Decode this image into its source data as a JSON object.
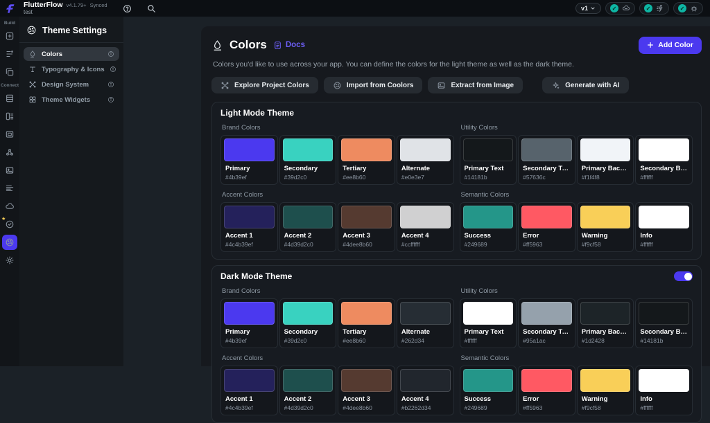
{
  "topbar": {
    "brand": "FlutterFlow",
    "version": "v4.1.79+",
    "sync_status": "Synced",
    "project_name": "test",
    "version_selector": "v1",
    "check_color": "#0eb5a3",
    "status_pills": [
      {
        "icon": "cloud-chat-icon"
      },
      {
        "icon": "actions-bolt-icon"
      },
      {
        "icon": "bug-icon"
      }
    ]
  },
  "rail": {
    "groups": [
      {
        "label": "Build",
        "items": [
          {
            "icon": "add-widget",
            "active": false
          },
          {
            "icon": "widget-tree",
            "active": false
          },
          {
            "icon": "pages",
            "active": false
          }
        ]
      },
      {
        "label": "Connect",
        "items": [
          {
            "icon": "database",
            "active": false
          },
          {
            "icon": "data-schema",
            "active": false
          },
          {
            "icon": "app-state",
            "active": false
          },
          {
            "icon": "integrations",
            "active": false
          },
          {
            "icon": "media",
            "active": false
          },
          {
            "icon": "custom-code",
            "active": false
          },
          {
            "icon": "cloud",
            "active": false
          },
          {
            "icon": "checklist",
            "active": false,
            "badge": "★"
          },
          {
            "icon": "palette",
            "active": true
          },
          {
            "icon": "gear",
            "active": false
          }
        ]
      }
    ]
  },
  "sidebar": {
    "title": "Theme Settings",
    "items": [
      {
        "icon": "drop",
        "label": "Colors",
        "active": true
      },
      {
        "icon": "typography",
        "label": "Typography & Icons",
        "active": false
      },
      {
        "icon": "design-system",
        "label": "Design System",
        "active": false
      },
      {
        "icon": "widgets",
        "label": "Theme Widgets",
        "active": false
      }
    ]
  },
  "main": {
    "header": {
      "title": "Colors",
      "docs_label": "Docs",
      "add_button_label": "Add Color",
      "description": "Colors you'd like to use across your app. You can define the colors for the light theme as well as the dark theme."
    },
    "actions": [
      {
        "icon": "design-system",
        "label": "Explore Project Colors",
        "spaced": false
      },
      {
        "icon": "coolors",
        "label": "Import from Coolors",
        "spaced": false
      },
      {
        "icon": "image",
        "label": "Extract from Image",
        "spaced": false
      },
      {
        "icon": "sparkle",
        "label": "Generate with AI",
        "spaced": true
      }
    ],
    "sections": [
      {
        "title": "Light Mode Theme",
        "toggle": null,
        "rows": [
          {
            "groups": [
              {
                "label": "Brand Colors",
                "swatches": [
                  {
                    "label": "Primary",
                    "hex": "#4b39ef",
                    "css": "#4b39ef"
                  },
                  {
                    "label": "Secondary",
                    "hex": "#39d2c0",
                    "css": "#39d2c0"
                  },
                  {
                    "label": "Tertiary",
                    "hex": "#ee8b60",
                    "css": "#ee8b60"
                  },
                  {
                    "label": "Alternate",
                    "hex": "#e0e3e7",
                    "css": "#e0e3e7"
                  }
                ]
              },
              {
                "label": "Utility Colors",
                "swatches": [
                  {
                    "label": "Primary Text",
                    "hex": "#14181b",
                    "css": "#14181b"
                  },
                  {
                    "label": "Secondary Text",
                    "hex": "#57636c",
                    "css": "#57636c"
                  },
                  {
                    "label": "Primary Background",
                    "hex": "#f1f4f8",
                    "css": "#f1f4f8"
                  },
                  {
                    "label": "Secondary Background",
                    "hex": "#ffffff",
                    "css": "#ffffff"
                  }
                ]
              }
            ]
          },
          {
            "groups": [
              {
                "label": "Accent Colors",
                "swatches": [
                  {
                    "label": "Accent 1",
                    "hex": "#4c4b39ef",
                    "css": "rgba(75,57,239,0.30)"
                  },
                  {
                    "label": "Accent 2",
                    "hex": "#4d39d2c0",
                    "css": "rgba(57,210,192,0.30)"
                  },
                  {
                    "label": "Accent 3",
                    "hex": "#4dee8b60",
                    "css": "rgba(238,139,96,0.30)"
                  },
                  {
                    "label": "Accent 4",
                    "hex": "#ccffffff",
                    "css": "rgba(255,255,255,0.80)"
                  }
                ]
              },
              {
                "label": "Semantic Colors",
                "swatches": [
                  {
                    "label": "Success",
                    "hex": "#249689",
                    "css": "#249689"
                  },
                  {
                    "label": "Error",
                    "hex": "#ff5963",
                    "css": "#ff5963"
                  },
                  {
                    "label": "Warning",
                    "hex": "#f9cf58",
                    "css": "#f9cf58"
                  },
                  {
                    "label": "Info",
                    "hex": "#ffffff",
                    "css": "#ffffff"
                  }
                ]
              }
            ]
          }
        ]
      },
      {
        "title": "Dark Mode Theme",
        "toggle": "on",
        "rows": [
          {
            "groups": [
              {
                "label": "Brand Colors",
                "swatches": [
                  {
                    "label": "Primary",
                    "hex": "#4b39ef",
                    "css": "#4b39ef"
                  },
                  {
                    "label": "Secondary",
                    "hex": "#39d2c0",
                    "css": "#39d2c0"
                  },
                  {
                    "label": "Tertiary",
                    "hex": "#ee8b60",
                    "css": "#ee8b60"
                  },
                  {
                    "label": "Alternate",
                    "hex": "#262d34",
                    "css": "#262d34"
                  }
                ]
              },
              {
                "label": "Utility Colors",
                "swatches": [
                  {
                    "label": "Primary Text",
                    "hex": "#ffffff",
                    "css": "#ffffff"
                  },
                  {
                    "label": "Secondary Text",
                    "hex": "#95a1ac",
                    "css": "#95a1ac"
                  },
                  {
                    "label": "Primary Background",
                    "hex": "#1d2428",
                    "css": "#1d2428"
                  },
                  {
                    "label": "Secondary Background",
                    "hex": "#14181b",
                    "css": "#14181b"
                  }
                ]
              }
            ]
          },
          {
            "groups": [
              {
                "label": "Accent Colors",
                "swatches": [
                  {
                    "label": "Accent 1",
                    "hex": "#4c4b39ef",
                    "css": "rgba(75,57,239,0.30)"
                  },
                  {
                    "label": "Accent 2",
                    "hex": "#4d39d2c0",
                    "css": "rgba(57,210,192,0.30)"
                  },
                  {
                    "label": "Accent 3",
                    "hex": "#4dee8b60",
                    "css": "rgba(238,139,96,0.30)"
                  },
                  {
                    "label": "Accent 4",
                    "hex": "#b2262d34",
                    "css": "rgba(38,45,52,0.70)"
                  }
                ]
              },
              {
                "label": "Semantic Colors",
                "swatches": [
                  {
                    "label": "Success",
                    "hex": "#249689",
                    "css": "#249689"
                  },
                  {
                    "label": "Error",
                    "hex": "#ff5963",
                    "css": "#ff5963"
                  },
                  {
                    "label": "Warning",
                    "hex": "#f9cf58",
                    "css": "#f9cf58"
                  },
                  {
                    "label": "Info",
                    "hex": "#ffffff",
                    "css": "#ffffff"
                  }
                ]
              }
            ]
          }
        ]
      }
    ]
  }
}
